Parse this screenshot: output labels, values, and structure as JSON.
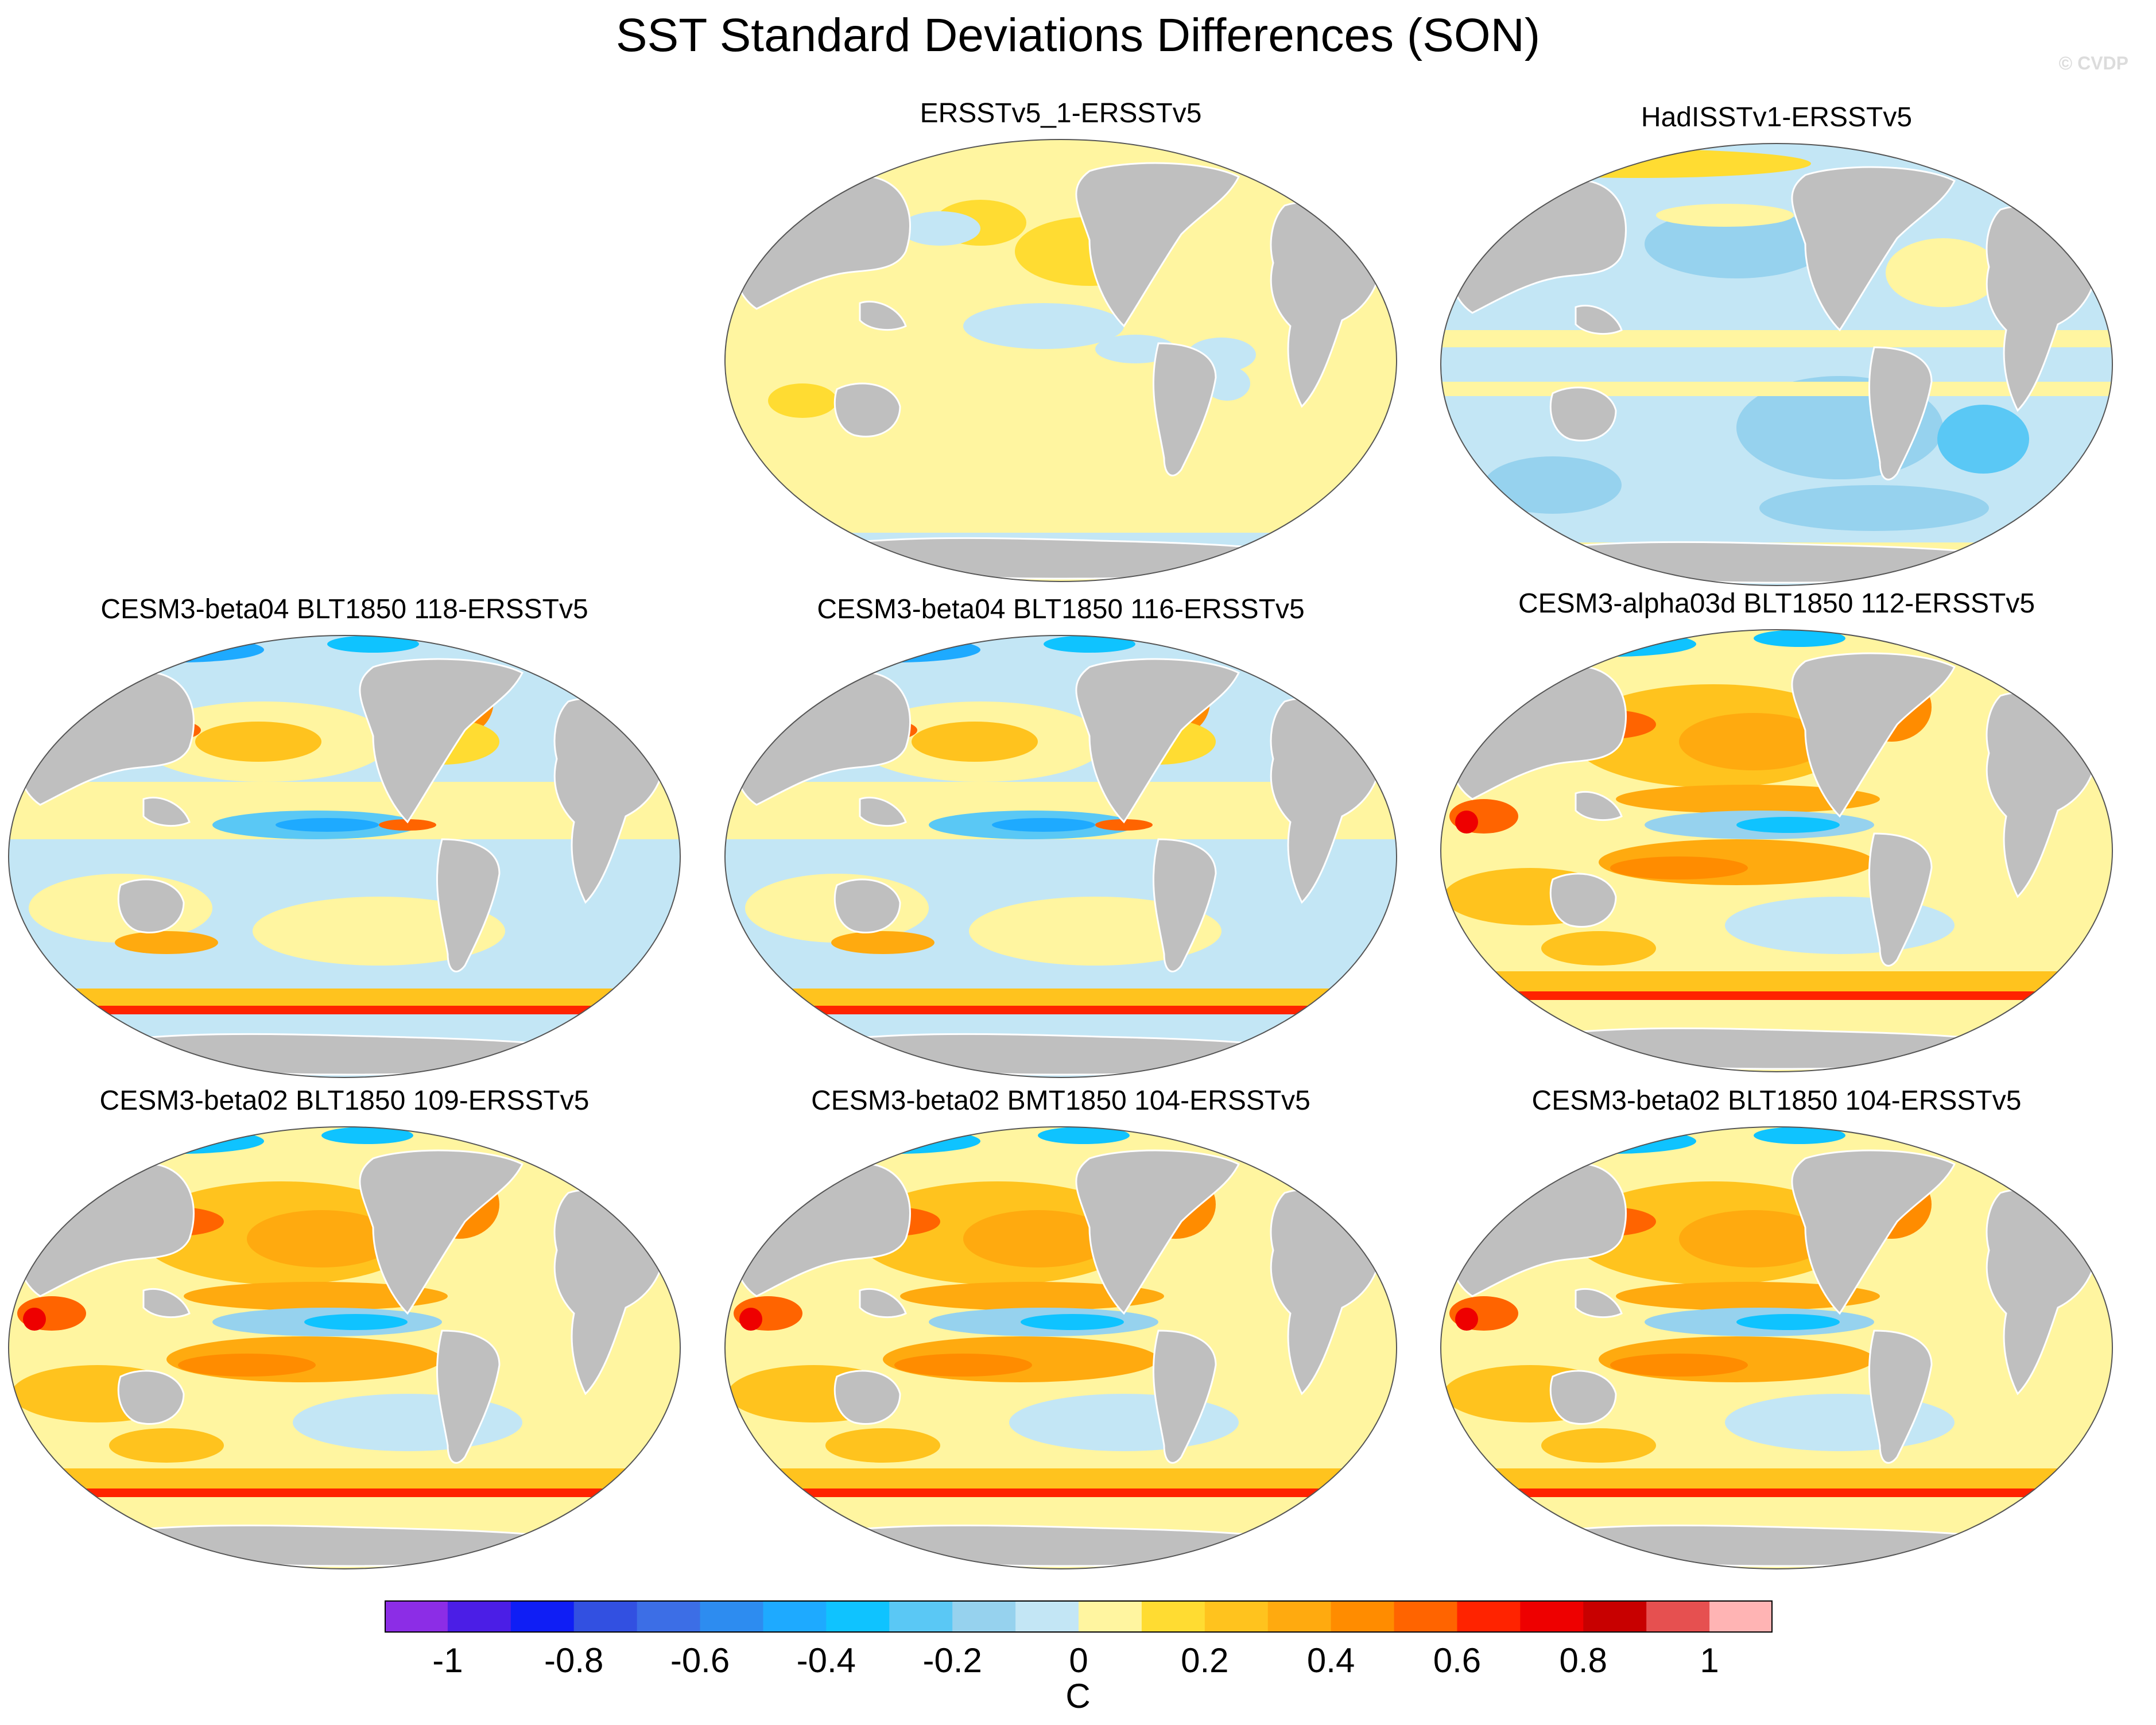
{
  "title": "SST Standard Deviations Differences (SON)",
  "watermark": "© CVDP",
  "panels": [
    {
      "id": "p1",
      "title": "ERSSTv5_1-ERSSTv5",
      "pattern": "warm-uniform"
    },
    {
      "id": "p2",
      "title": "HadISSTv1-ERSSTv5",
      "pattern": "cool-uniform"
    },
    {
      "id": "p3",
      "title": "CESM3-beta04 BLT1850 118-ERSSTv5",
      "pattern": "mixed-cool-equator"
    },
    {
      "id": "p4",
      "title": "CESM3-beta04 BLT1850 116-ERSSTv5",
      "pattern": "mixed-cool-equator"
    },
    {
      "id": "p5",
      "title": "CESM3-alpha03d BLT1850 112-ERSSTv5",
      "pattern": "warm-strong"
    },
    {
      "id": "p6",
      "title": "CESM3-beta02 BLT1850 109-ERSSTv5",
      "pattern": "warm-strong"
    },
    {
      "id": "p7",
      "title": "CESM3-beta02 BMT1850 104-ERSSTv5",
      "pattern": "warm-strong"
    },
    {
      "id": "p8",
      "title": "CESM3-beta02 BLT1850 104-ERSSTv5",
      "pattern": "warm-strong"
    }
  ],
  "colorbar": {
    "units": "C",
    "colors": [
      "#8c2de6",
      "#4b1ee6",
      "#0f1ef5",
      "#3250e1",
      "#3c6ee6",
      "#2d8cf0",
      "#1eaaff",
      "#0fc3ff",
      "#5ac8f5",
      "#96d2ee",
      "#c3e6f5",
      "#fff5a0",
      "#ffdc32",
      "#ffc31e",
      "#ffaa0f",
      "#ff8c00",
      "#ff6400",
      "#ff2300",
      "#ee0000",
      "#c80000",
      "#e65050",
      "#ffb4b4"
    ],
    "tick_labels": [
      "-1",
      "-0.8",
      "-0.6",
      "-0.4",
      "-0.2",
      "0",
      "0.2",
      "0.4",
      "0.6",
      "0.8",
      "1"
    ]
  },
  "colors": {
    "land": "#bfbfbf",
    "ocean_neutral": "#fff5a0"
  }
}
